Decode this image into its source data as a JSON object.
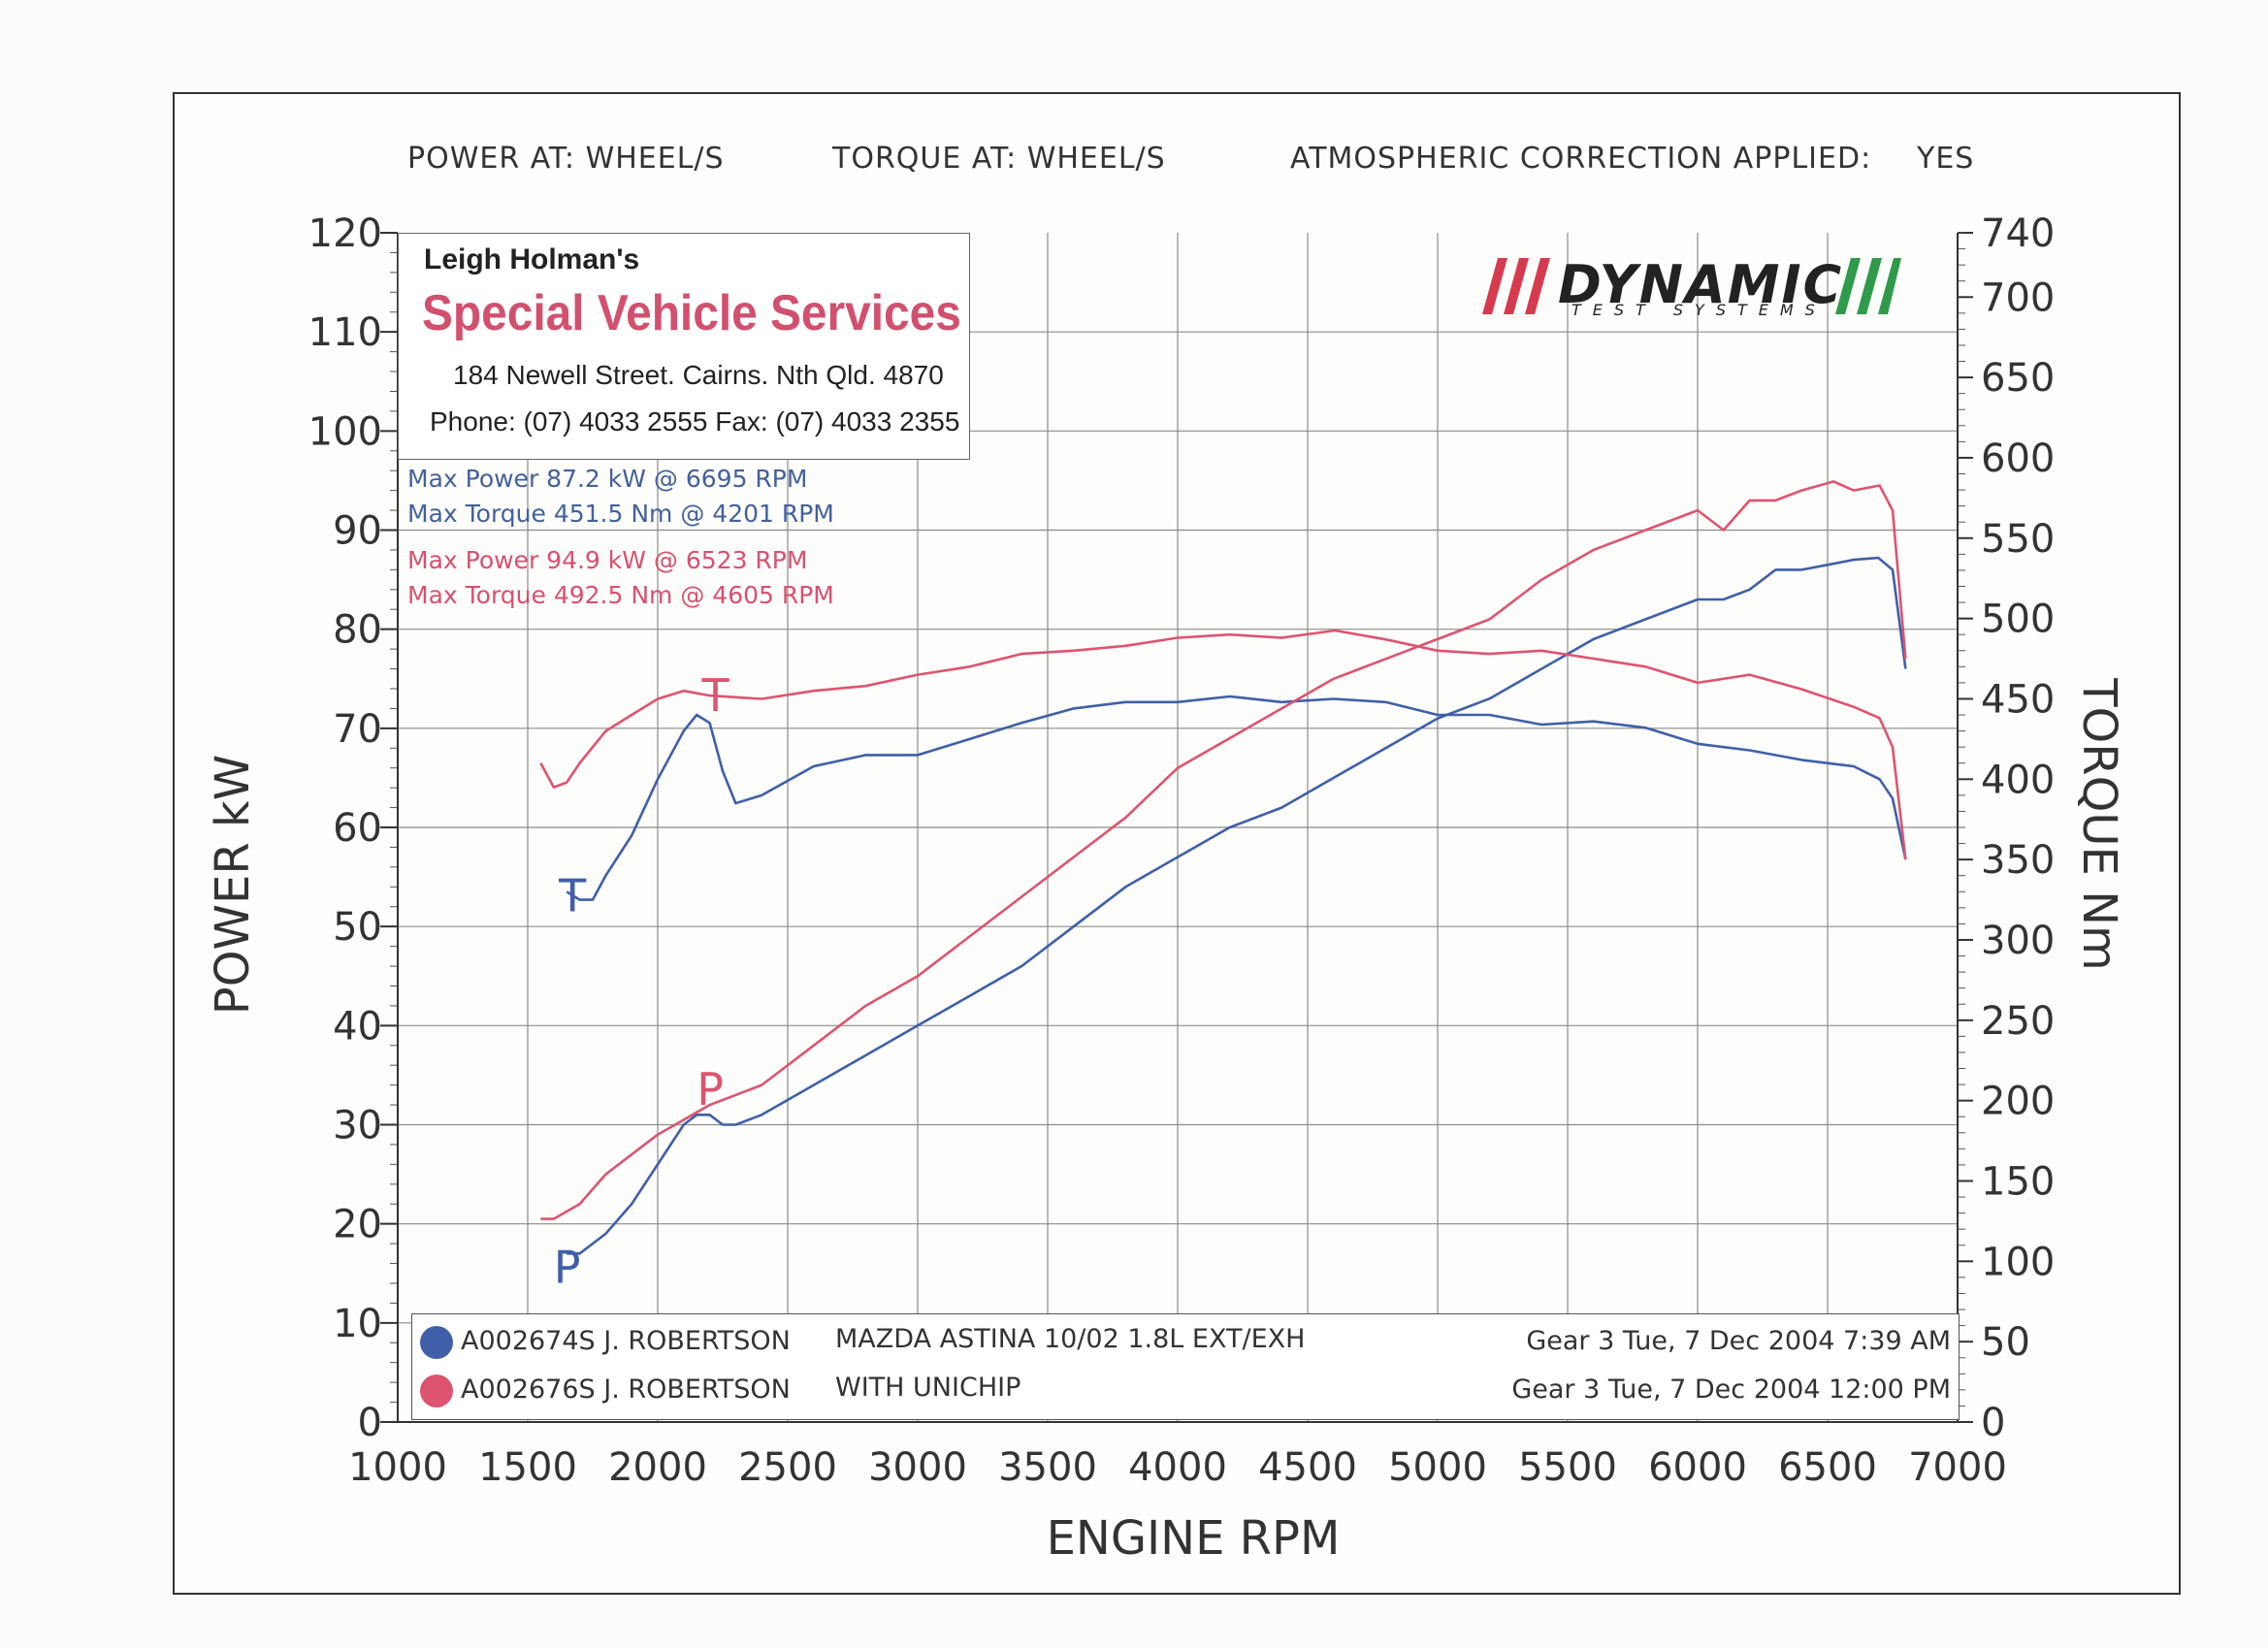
{
  "header": {
    "power_at": "POWER AT:  WHEEL/S",
    "torque_at": "TORQUE AT:  WHEEL/S",
    "atmos_label": "ATMOSPHERIC CORRECTION APPLIED:",
    "atmos_value": "YES"
  },
  "shop": {
    "owner": "Leigh Holman's",
    "name": "Special Vehicle Services",
    "address": "184 Newell Street. Cairns. Nth Qld. 4870",
    "phone": "Phone: (07) 4033 2555   Fax: (07) 4033 2355"
  },
  "logo": {
    "word": "DYNAMIC",
    "sub": "TEST SYSTEMS"
  },
  "summaries": {
    "blue_power": "Max Power 87.2 kW @ 6695 RPM",
    "blue_torque": "Max Torque 451.5 Nm @ 4201 RPM",
    "red_power": "Max Power 94.9 kW @ 6523 RPM",
    "red_torque": "Max Torque 492.5 Nm @ 4605 RPM"
  },
  "legend": {
    "runs": [
      {
        "id": "A002674S J. ROBERTSON",
        "desc": "MAZDA ASTINA 10/02 1.8L EXT/EXH",
        "date": "Gear 3 Tue, 7 Dec 2004 7:39 AM",
        "color": "#3f5fa8"
      },
      {
        "id": "A002676S J. ROBERTSON",
        "desc": "WITH UNICHIP",
        "date": "Gear 3 Tue, 7 Dec 2004 12:00 PM",
        "color": "#dd5470"
      }
    ]
  },
  "chart_data": {
    "type": "line",
    "title": "",
    "xlabel": "ENGINE RPM",
    "ylabel": "POWER kW",
    "y2label": "TORQUE Nm",
    "xlim": [
      1000,
      7000
    ],
    "ylim": [
      0,
      120
    ],
    "y2lim": [
      0,
      740
    ],
    "x_ticks": [
      1000,
      1500,
      2000,
      2500,
      3000,
      3500,
      4000,
      4500,
      5000,
      5500,
      6000,
      6500,
      7000
    ],
    "y_ticks": [
      0,
      10,
      20,
      30,
      40,
      50,
      60,
      70,
      80,
      90,
      100,
      110,
      120
    ],
    "y2_ticks": [
      0,
      50,
      100,
      150,
      200,
      250,
      300,
      350,
      400,
      450,
      500,
      550,
      600,
      650,
      700,
      740
    ],
    "curve_labels": {
      "torque": "T",
      "power": "P"
    },
    "series": [
      {
        "name": "A002674S power (kW)",
        "axis": "left",
        "color": "#3f5fa8",
        "x": [
          1650,
          1700,
          1800,
          1900,
          2000,
          2100,
          2150,
          2200,
          2250,
          2300,
          2400,
          2600,
          2800,
          3000,
          3200,
          3400,
          3600,
          3800,
          4000,
          4200,
          4400,
          4600,
          4800,
          5000,
          5200,
          5400,
          5600,
          5800,
          6000,
          6100,
          6200,
          6300,
          6400,
          6500,
          6600,
          6695,
          6750,
          6800
        ],
        "y": [
          17,
          17,
          19,
          22,
          26,
          30,
          31,
          31,
          30,
          30,
          31,
          34,
          37,
          40,
          43,
          46,
          50,
          54,
          57,
          60,
          62,
          65,
          68,
          71,
          73,
          76,
          79,
          81,
          83,
          83,
          84,
          86,
          86,
          86.5,
          87,
          87.2,
          86,
          76
        ]
      },
      {
        "name": "A002674S torque (Nm)",
        "axis": "right",
        "color": "#3f5fa8",
        "x": [
          1650,
          1700,
          1750,
          1800,
          1900,
          2000,
          2100,
          2150,
          2200,
          2250,
          2300,
          2400,
          2600,
          2800,
          3000,
          3200,
          3400,
          3600,
          3800,
          4000,
          4201,
          4400,
          4600,
          4800,
          5000,
          5200,
          5400,
          5600,
          5800,
          6000,
          6200,
          6400,
          6600,
          6700,
          6750,
          6800
        ],
        "y": [
          330,
          325,
          325,
          340,
          365,
          400,
          430,
          440,
          435,
          405,
          385,
          390,
          408,
          415,
          415,
          425,
          435,
          444,
          448,
          448,
          451.5,
          448,
          450,
          448,
          440,
          440,
          434,
          436,
          432,
          422,
          418,
          412,
          408,
          400,
          388,
          350
        ]
      },
      {
        "name": "A002676S power (kW)",
        "axis": "left",
        "color": "#dd5470",
        "x": [
          1550,
          1600,
          1700,
          1800,
          2000,
          2200,
          2400,
          2600,
          2800,
          3000,
          3200,
          3400,
          3600,
          3800,
          4000,
          4200,
          4400,
          4600,
          4800,
          5000,
          5200,
          5400,
          5600,
          5800,
          6000,
          6100,
          6200,
          6300,
          6400,
          6523,
          6600,
          6700,
          6750,
          6800
        ],
        "y": [
          20.5,
          20.5,
          22,
          25,
          29,
          32,
          34,
          38,
          42,
          45,
          49,
          53,
          57,
          61,
          66,
          69,
          72,
          75,
          77,
          79,
          81,
          85,
          88,
          90,
          92,
          90,
          93,
          93,
          94,
          94.9,
          94,
          94.5,
          92,
          77
        ]
      },
      {
        "name": "A002676S torque (Nm)",
        "axis": "right",
        "color": "#dd5470",
        "x": [
          1550,
          1600,
          1650,
          1700,
          1800,
          1900,
          2000,
          2100,
          2200,
          2400,
          2600,
          2800,
          3000,
          3200,
          3400,
          3600,
          3800,
          4000,
          4200,
          4400,
          4605,
          4800,
          5000,
          5200,
          5400,
          5600,
          5800,
          6000,
          6200,
          6400,
          6600,
          6700,
          6750,
          6800
        ],
        "y": [
          410,
          395,
          398,
          410,
          430,
          440,
          450,
          455,
          452,
          450,
          455,
          458,
          465,
          470,
          478,
          480,
          483,
          488,
          490,
          488,
          492.5,
          487,
          480,
          478,
          480,
          475,
          470,
          460,
          465,
          456,
          445,
          438,
          420,
          350
        ]
      }
    ]
  }
}
